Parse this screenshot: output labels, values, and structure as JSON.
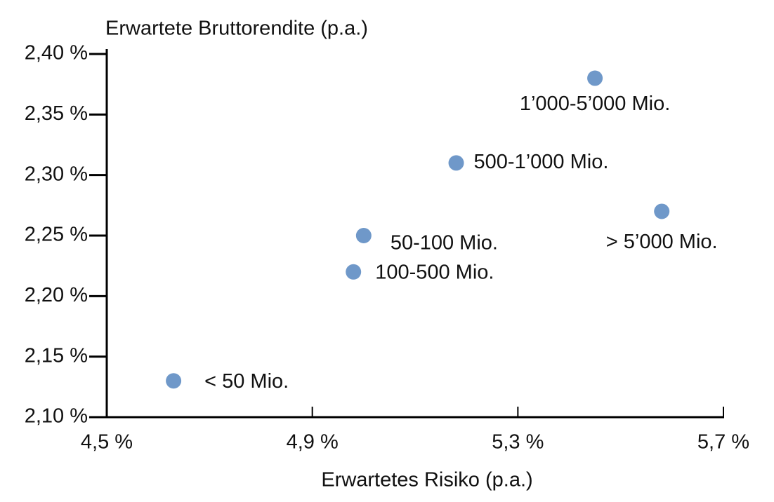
{
  "chart_data": {
    "type": "scatter",
    "y_axis_title": "Erwartete Bruttorendite (p.a.)",
    "x_axis_title": "Erwartetes Risiko (p.a.)",
    "color": "#6f98c9",
    "x": [
      4.63,
      4.98,
      5.0,
      5.18,
      5.45,
      5.58
    ],
    "values": [
      2.13,
      2.22,
      2.25,
      2.31,
      2.38,
      2.27
    ],
    "point_labels": [
      "< 50 Mio.",
      "100-500 Mio.",
      "50-100 Mio.",
      "500-1’000 Mio.",
      "1’000-5’000 Mio.",
      "> 5’000 Mio."
    ],
    "xlim": [
      4.5,
      5.7
    ],
    "xticks": [
      {
        "value": 4.5,
        "label": "4,5 %"
      },
      {
        "value": 4.9,
        "label": "4,9 %"
      },
      {
        "value": 5.3,
        "label": "5,3 %"
      },
      {
        "value": 5.7,
        "label": "5,7 %"
      }
    ],
    "ylim": [
      2.1,
      2.4
    ],
    "yticks": [
      {
        "value": 2.1,
        "label": "2,10 %"
      },
      {
        "value": 2.15,
        "label": "2,15 %"
      },
      {
        "value": 2.2,
        "label": "2,20 %"
      },
      {
        "value": 2.25,
        "label": "2,25 %"
      },
      {
        "value": 2.3,
        "label": "2,30 %"
      },
      {
        "value": 2.35,
        "label": "2,35 %"
      },
      {
        "value": 2.4,
        "label": "2,40 %"
      }
    ]
  }
}
